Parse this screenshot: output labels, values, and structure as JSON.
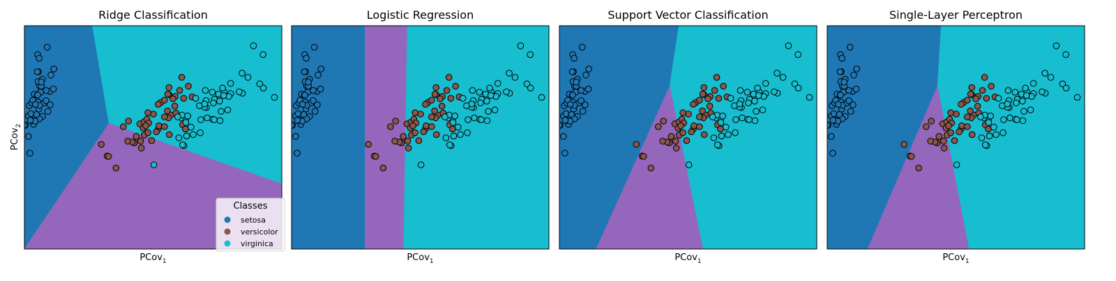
{
  "colors": {
    "setosa": "#1f77b4",
    "versicolor": "#8c564b",
    "virginica": "#17becf",
    "region_versicolor": "#9467bd"
  },
  "legend": {
    "title": "Classes",
    "items": [
      "setosa",
      "versicolor",
      "virginica"
    ],
    "placement": "lower-right of first panel"
  },
  "chart_data": [
    {
      "type": "scatter",
      "title": "Ridge Classification",
      "xlabel": "PCov1",
      "ylabel": "PCov2",
      "grid": false,
      "decision_regions": true,
      "xlim": [
        -3,
        4
      ],
      "ylim": [
        -3.0,
        1.8
      ],
      "boundary": {
        "center": [
          -0.7,
          -0.3
        ],
        "setosa_top": [
          -1.15,
          1.8
        ],
        "setosa_bottom": [
          -3.0,
          -3.0
        ],
        "virginica_right": [
          4.0,
          -1.6
        ]
      },
      "legend": true
    },
    {
      "type": "scatter",
      "title": "Logistic Regression",
      "xlabel": "PCov1",
      "ylabel": "",
      "grid": false,
      "decision_regions": true,
      "xlim": [
        -3,
        4
      ],
      "ylim": [
        -3.0,
        1.8
      ],
      "boundary": {
        "setosa_versicolor": [
          [
            -1.0,
            1.8
          ],
          [
            -1.0,
            -3.0
          ]
        ],
        "versicolor_virginica": [
          [
            0.15,
            1.8
          ],
          [
            0.05,
            -3.0
          ]
        ]
      },
      "legend": false
    },
    {
      "type": "scatter",
      "title": "Support Vector Classification",
      "xlabel": "PCov1",
      "ylabel": "",
      "grid": false,
      "decision_regions": true,
      "xlim": [
        -3,
        4
      ],
      "ylim": [
        -3.0,
        1.8
      ],
      "boundary": {
        "center": [
          0.0,
          0.5
        ],
        "setosa_top": [
          0.25,
          1.8
        ],
        "setosa_bottom": [
          -2.0,
          -3.0
        ],
        "virginica_bottom": [
          0.9,
          -3.0
        ]
      },
      "legend": false
    },
    {
      "type": "scatter",
      "title": "Single-Layer Perceptron",
      "xlabel": "PCov1",
      "ylabel": "",
      "grid": false,
      "decision_regions": true,
      "xlim": [
        -3,
        4
      ],
      "ylim": [
        -3.0,
        1.8
      ],
      "boundary": {
        "center": [
          0.0,
          0.5
        ],
        "setosa_top": [
          0.1,
          1.8
        ],
        "setosa_bottom": [
          -1.9,
          -3.0
        ],
        "virginica_bottom": [
          0.85,
          -3.0
        ]
      },
      "legend": false
    }
  ],
  "points": {
    "setosa": [
      [
        -2.68,
        0.32
      ],
      [
        -2.71,
        -0.18
      ],
      [
        -2.89,
        -0.14
      ],
      [
        -2.75,
        -0.32
      ],
      [
        -2.73,
        0.33
      ],
      [
        -2.28,
        0.74
      ],
      [
        -2.82,
        -0.09
      ],
      [
        -2.63,
        0.16
      ],
      [
        -2.89,
        -0.58
      ],
      [
        -2.67,
        -0.11
      ],
      [
        -2.51,
        0.65
      ],
      [
        -2.61,
        0.01
      ],
      [
        -2.79,
        -0.24
      ],
      [
        -3.23,
        -0.51
      ],
      [
        -2.64,
        1.18
      ],
      [
        -2.38,
        1.34
      ],
      [
        -2.62,
        0.81
      ],
      [
        -2.65,
        0.31
      ],
      [
        -2.2,
        0.87
      ],
      [
        -2.59,
        0.51
      ],
      [
        -2.31,
        0.39
      ],
      [
        -2.54,
        0.43
      ],
      [
        -3.22,
        0.14
      ],
      [
        -2.3,
        0.1
      ],
      [
        -2.36,
        -0.04
      ],
      [
        -2.51,
        -0.15
      ],
      [
        -2.47,
        0.14
      ],
      [
        -2.56,
        0.37
      ],
      [
        -2.64,
        0.31
      ],
      [
        -2.63,
        -0.19
      ],
      [
        -2.59,
        -0.2
      ],
      [
        -2.41,
        0.41
      ],
      [
        -2.65,
        0.81
      ],
      [
        -2.6,
        1.1
      ],
      [
        -2.67,
        -0.11
      ],
      [
        -2.87,
        0.08
      ],
      [
        -2.63,
        0.6
      ],
      [
        -2.8,
        0.14
      ],
      [
        -2.98,
        -0.34
      ],
      [
        -2.59,
        0.09
      ],
      [
        -2.77,
        0.2
      ],
      [
        -2.85,
        -0.94
      ],
      [
        -3.0,
        -0.34
      ],
      [
        -2.41,
        0.19
      ],
      [
        -2.21,
        0.44
      ],
      [
        -2.71,
        -0.25
      ],
      [
        -2.54,
        0.5
      ],
      [
        -2.84,
        -0.23
      ],
      [
        -2.54,
        0.59
      ],
      [
        -2.7,
        0.11
      ]
    ],
    "versicolor": [
      [
        1.28,
        0.69
      ],
      [
        0.93,
        0.32
      ],
      [
        1.46,
        0.5
      ],
      [
        0.18,
        -0.83
      ],
      [
        1.09,
        0.07
      ],
      [
        0.64,
        -0.42
      ],
      [
        1.1,
        0.28
      ],
      [
        -0.75,
        -1.0
      ],
      [
        1.04,
        0.23
      ],
      [
        -0.01,
        -0.72
      ],
      [
        -0.51,
        -1.26
      ],
      [
        0.51,
        -0.1
      ],
      [
        0.26,
        -0.55
      ],
      [
        0.98,
        -0.12
      ],
      [
        -0.17,
        -0.25
      ],
      [
        0.93,
        0.47
      ],
      [
        0.66,
        -0.35
      ],
      [
        0.23,
        -0.33
      ],
      [
        0.94,
        -0.54
      ],
      [
        0.04,
        -0.58
      ],
      [
        1.12,
        -0.08
      ],
      [
        0.36,
        -0.07
      ],
      [
        1.3,
        -0.33
      ],
      [
        0.92,
        -0.18
      ],
      [
        0.71,
        0.15
      ],
      [
        0.9,
        0.33
      ],
      [
        1.33,
        0.24
      ],
      [
        1.56,
        0.27
      ],
      [
        0.81,
        -0.16
      ],
      [
        -0.31,
        -0.37
      ],
      [
        -0.07,
        -0.7
      ],
      [
        -0.19,
        -0.68
      ],
      [
        0.14,
        -0.31
      ],
      [
        1.38,
        -0.42
      ],
      [
        0.59,
        -0.48
      ],
      [
        0.81,
        0.2
      ],
      [
        1.22,
        0.41
      ],
      [
        0.81,
        -0.37
      ],
      [
        0.25,
        -0.27
      ],
      [
        0.16,
        -0.68
      ],
      [
        0.46,
        -0.67
      ],
      [
        0.89,
        -0.03
      ],
      [
        0.23,
        -0.4
      ],
      [
        -0.71,
        -1.01
      ],
      [
        0.36,
        -0.5
      ],
      [
        0.33,
        -0.21
      ],
      [
        0.38,
        -0.29
      ],
      [
        0.64,
        0.11
      ],
      [
        -0.91,
        -0.75
      ],
      [
        0.3,
        -0.35
      ]
    ],
    "virginica": [
      [
        2.53,
        -0.01
      ],
      [
        1.41,
        -0.57
      ],
      [
        2.61,
        0.34
      ],
      [
        1.97,
        -0.18
      ],
      [
        2.35,
        -0.04
      ],
      [
        3.4,
        0.55
      ],
      [
        0.52,
        -1.19
      ],
      [
        2.93,
        0.35
      ],
      [
        2.32,
        -0.24
      ],
      [
        2.92,
        0.78
      ],
      [
        1.66,
        0.24
      ],
      [
        1.8,
        -0.22
      ],
      [
        2.17,
        0.22
      ],
      [
        1.34,
        -0.78
      ],
      [
        1.59,
        -0.54
      ],
      [
        1.9,
        0.12
      ],
      [
        1.95,
        0.04
      ],
      [
        3.49,
        1.18
      ],
      [
        3.8,
        0.26
      ],
      [
        1.3,
        -0.76
      ],
      [
        2.43,
        0.38
      ],
      [
        1.2,
        -0.61
      ],
      [
        3.5,
        0.46
      ],
      [
        1.39,
        -0.2
      ],
      [
        2.28,
        0.33
      ],
      [
        2.61,
        0.56
      ],
      [
        1.26,
        -0.18
      ],
      [
        1.29,
        -0.12
      ],
      [
        2.12,
        -0.21
      ],
      [
        2.39,
        0.46
      ],
      [
        2.84,
        0.38
      ],
      [
        3.23,
        1.37
      ],
      [
        2.16,
        -0.22
      ],
      [
        1.44,
        -0.14
      ],
      [
        1.78,
        -0.5
      ],
      [
        3.08,
        0.69
      ],
      [
        2.14,
        0.14
      ],
      [
        1.9,
        0.05
      ],
      [
        1.17,
        -0.16
      ],
      [
        2.11,
        0.37
      ],
      [
        2.31,
        0.18
      ],
      [
        1.92,
        0.41
      ],
      [
        1.41,
        -0.57
      ],
      [
        2.56,
        0.28
      ],
      [
        2.42,
        0.3
      ],
      [
        1.94,
        0.19
      ],
      [
        1.53,
        -0.38
      ],
      [
        1.76,
        0.08
      ],
      [
        1.9,
        0.12
      ],
      [
        1.39,
        -0.28
      ]
    ]
  }
}
